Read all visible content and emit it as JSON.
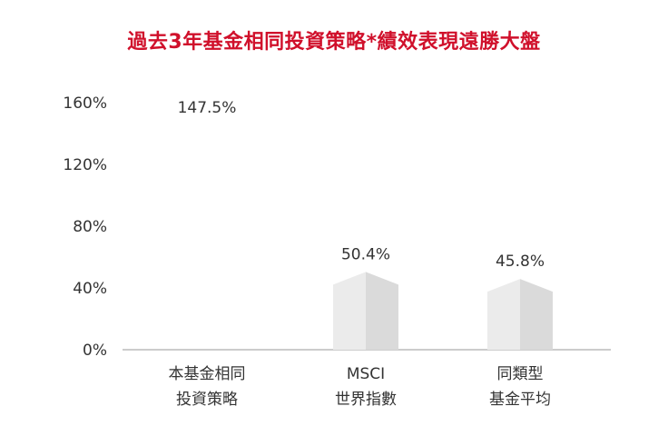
{
  "title": "過去3年基金相同投資策略*績效表現遠勝大盤",
  "colors": {
    "title": "#d0102b",
    "bar_front": "#ebebeb",
    "bar_side": "#dadada",
    "bar_top": "#f4f4f4",
    "axis": "#999999",
    "text": "#333333"
  },
  "chart_data": {
    "type": "bar",
    "title": "過去3年基金相同投資策略*績效表現遠勝大盤",
    "categories": [
      [
        "本基金相同",
        "投資策略"
      ],
      [
        "MSCI",
        "世界指數"
      ],
      [
        "同類型",
        "基金平均"
      ]
    ],
    "values": [
      147.5,
      50.4,
      45.8
    ],
    "data_labels": [
      "147.5%",
      "50.4%",
      "45.8%"
    ],
    "yticks": [
      "0%",
      "40%",
      "80%",
      "120%",
      "160%"
    ],
    "ytick_values": [
      0,
      40,
      80,
      120,
      160
    ],
    "ylim": [
      0,
      160
    ],
    "grid": false,
    "legend": "none"
  }
}
